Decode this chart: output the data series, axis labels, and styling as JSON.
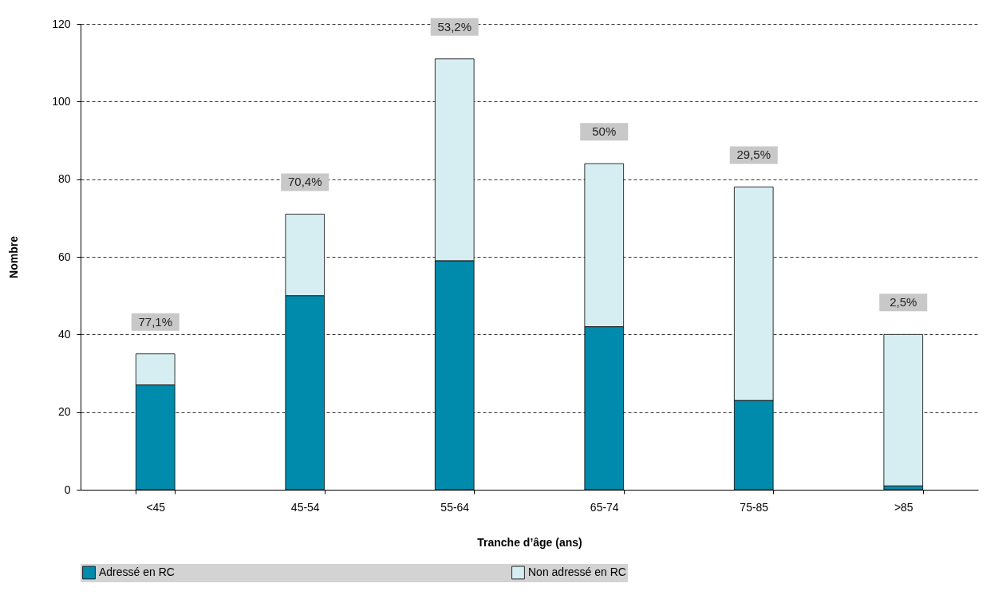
{
  "chart_data": {
    "type": "bar",
    "stacked": true,
    "xlabel": "Tranche d’âge (ans)",
    "ylabel": "Nombre",
    "categories": [
      "<45",
      "45-54",
      "55-64",
      "65-74",
      "75-85",
      ">85"
    ],
    "series": [
      {
        "name": "Adressé en RC",
        "color": "#008aab",
        "values": [
          27,
          50,
          59,
          42,
          23,
          1
        ]
      },
      {
        "name": "Non adressé en RC",
        "color": "#d6eef2",
        "values": [
          8,
          21,
          52,
          42,
          55,
          39
        ]
      }
    ],
    "ylim": [
      0,
      120
    ],
    "yticks": [
      0,
      20,
      40,
      60,
      80,
      100,
      120
    ],
    "grid": "y",
    "legend": "bottom",
    "annotations": [
      "77,1%",
      "70,4%",
      "53,2%",
      "50%",
      "29,5%",
      "2,5%"
    ]
  }
}
